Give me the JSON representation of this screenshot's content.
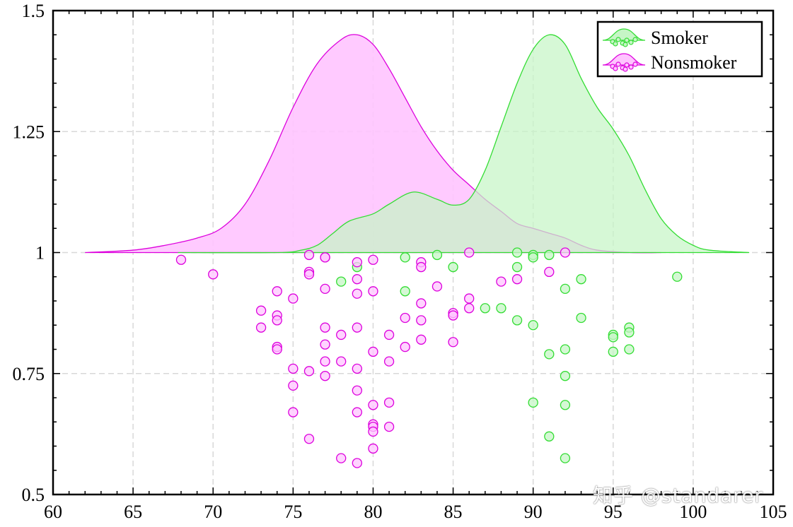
{
  "chart_data": {
    "type": "violin-scatter",
    "xlim": [
      60,
      105
    ],
    "ylim": [
      0.5,
      1.5
    ],
    "x_ticks": [
      60,
      65,
      70,
      75,
      80,
      85,
      90,
      95,
      100,
      105
    ],
    "y_ticks": [
      0.5,
      0.75,
      1,
      1.25,
      1.5
    ],
    "y_tick_labels": [
      "0.5",
      "0.75",
      "1",
      "1.25",
      "1.5"
    ],
    "grid": true,
    "legend_position": "top-right",
    "series": [
      {
        "name": "Smoker",
        "color": "#33dd33",
        "fill": "#c6f5c6",
        "density_curve": [
          [
            67.8,
            1.0
          ],
          [
            74,
            1.0
          ],
          [
            75.5,
            1.005
          ],
          [
            76.5,
            1.015
          ],
          [
            77.5,
            1.04
          ],
          [
            78.5,
            1.065
          ],
          [
            80,
            1.08
          ],
          [
            81,
            1.1
          ],
          [
            82.5,
            1.125
          ],
          [
            84,
            1.11
          ],
          [
            85,
            1.098
          ],
          [
            86,
            1.11
          ],
          [
            87,
            1.17
          ],
          [
            88,
            1.26
          ],
          [
            89,
            1.35
          ],
          [
            90,
            1.42
          ],
          [
            91,
            1.45
          ],
          [
            92,
            1.43
          ],
          [
            93,
            1.36
          ],
          [
            94,
            1.3
          ],
          [
            95,
            1.255
          ],
          [
            96,
            1.2
          ],
          [
            97,
            1.13
          ],
          [
            98,
            1.07
          ],
          [
            99,
            1.035
          ],
          [
            100,
            1.015
          ],
          [
            101,
            1.005
          ],
          [
            103.5,
            1.0
          ]
        ],
        "points": [
          [
            78,
            0.94
          ],
          [
            79,
            0.97
          ],
          [
            82,
            0.99
          ],
          [
            82,
            0.92
          ],
          [
            84,
            0.995
          ],
          [
            85,
            0.97
          ],
          [
            87,
            0.885
          ],
          [
            88,
            0.885
          ],
          [
            89,
            1.0
          ],
          [
            89,
            0.97
          ],
          [
            89,
            0.86
          ],
          [
            90,
            0.995
          ],
          [
            90,
            0.99
          ],
          [
            90,
            0.85
          ],
          [
            90,
            0.69
          ],
          [
            91,
            0.995
          ],
          [
            91,
            0.79
          ],
          [
            91,
            0.62
          ],
          [
            92,
            0.925
          ],
          [
            92,
            0.8
          ],
          [
            92,
            0.745
          ],
          [
            92,
            0.685
          ],
          [
            92,
            0.575
          ],
          [
            93,
            0.945
          ],
          [
            93,
            0.865
          ],
          [
            95,
            0.83
          ],
          [
            95,
            0.825
          ],
          [
            95,
            0.795
          ],
          [
            96,
            0.845
          ],
          [
            96,
            0.835
          ],
          [
            96,
            0.8
          ],
          [
            99,
            0.95
          ]
        ]
      },
      {
        "name": "Nonsmoker",
        "color": "#dd00dd",
        "fill": "#ffc4ff",
        "density_curve": [
          [
            62,
            1.0
          ],
          [
            65,
            1.005
          ],
          [
            67,
            1.015
          ],
          [
            69,
            1.03
          ],
          [
            70.5,
            1.05
          ],
          [
            72,
            1.1
          ],
          [
            73.5,
            1.19
          ],
          [
            75,
            1.3
          ],
          [
            76.5,
            1.39
          ],
          [
            78,
            1.44
          ],
          [
            79,
            1.45
          ],
          [
            80,
            1.43
          ],
          [
            81,
            1.38
          ],
          [
            82,
            1.32
          ],
          [
            83,
            1.26
          ],
          [
            84,
            1.21
          ],
          [
            85,
            1.17
          ],
          [
            86,
            1.14
          ],
          [
            87,
            1.11
          ],
          [
            88,
            1.085
          ],
          [
            89,
            1.06
          ],
          [
            90,
            1.05
          ],
          [
            91,
            1.04
          ],
          [
            92,
            1.03
          ],
          [
            93,
            1.015
          ],
          [
            94,
            1.005
          ],
          [
            96,
            1.0
          ],
          [
            98,
            1.0
          ]
        ],
        "points": [
          [
            68,
            0.985
          ],
          [
            70,
            0.955
          ],
          [
            73,
            0.88
          ],
          [
            73,
            0.845
          ],
          [
            74,
            0.92
          ],
          [
            74,
            0.87
          ],
          [
            74,
            0.86
          ],
          [
            74,
            0.805
          ],
          [
            74,
            0.8
          ],
          [
            75,
            0.905
          ],
          [
            75,
            0.76
          ],
          [
            75,
            0.725
          ],
          [
            75,
            0.67
          ],
          [
            76,
            0.995
          ],
          [
            76,
            0.96
          ],
          [
            76,
            0.955
          ],
          [
            76,
            0.755
          ],
          [
            76,
            0.615
          ],
          [
            77,
            0.99
          ],
          [
            77,
            0.99
          ],
          [
            77,
            0.925
          ],
          [
            77,
            0.845
          ],
          [
            77,
            0.81
          ],
          [
            77,
            0.775
          ],
          [
            77,
            0.745
          ],
          [
            78,
            0.83
          ],
          [
            78,
            0.775
          ],
          [
            78,
            0.575
          ],
          [
            79,
            0.98
          ],
          [
            79,
            0.945
          ],
          [
            79,
            0.915
          ],
          [
            79,
            0.845
          ],
          [
            79,
            0.76
          ],
          [
            79,
            0.715
          ],
          [
            79,
            0.67
          ],
          [
            79,
            0.565
          ],
          [
            80,
            0.985
          ],
          [
            80,
            0.92
          ],
          [
            80,
            0.795
          ],
          [
            80,
            0.685
          ],
          [
            80,
            0.645
          ],
          [
            80,
            0.64
          ],
          [
            80,
            0.63
          ],
          [
            80,
            0.595
          ],
          [
            81,
            0.83
          ],
          [
            81,
            0.775
          ],
          [
            81,
            0.69
          ],
          [
            81,
            0.64
          ],
          [
            82,
            0.865
          ],
          [
            82,
            0.805
          ],
          [
            83,
            0.98
          ],
          [
            83,
            0.97
          ],
          [
            83,
            0.895
          ],
          [
            83,
            0.86
          ],
          [
            83,
            0.82
          ],
          [
            84,
            0.93
          ],
          [
            85,
            0.875
          ],
          [
            85,
            0.87
          ],
          [
            85,
            0.815
          ],
          [
            86,
            1.0
          ],
          [
            86,
            0.905
          ],
          [
            86,
            0.885
          ],
          [
            88,
            0.94
          ],
          [
            89,
            0.945
          ],
          [
            91,
            0.96
          ],
          [
            92,
            1.0
          ]
        ]
      }
    ]
  },
  "watermark": "知乎 @standarer"
}
